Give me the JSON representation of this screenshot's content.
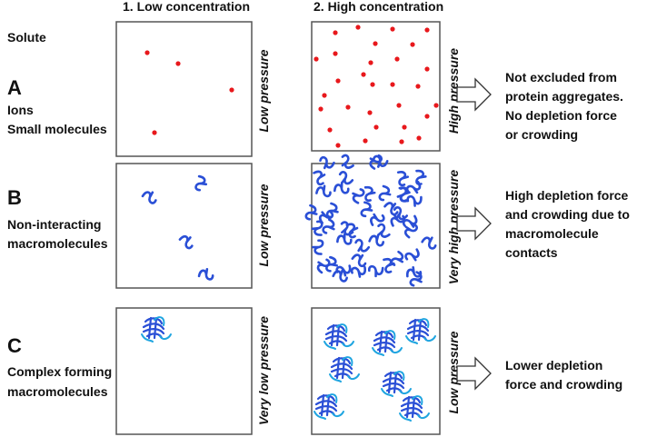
{
  "headers": {
    "col1": "1. Low concentration",
    "col2": "2. High concentration",
    "solute": "Solute"
  },
  "rows": [
    {
      "letter": "A",
      "lines": [
        "Ions",
        "Small molecules"
      ],
      "pressure_low": "Low pressure",
      "pressure_high": "High pressure",
      "outcome": [
        "Not excluded from",
        "protein aggregates.",
        "No depletion force",
        "or crowding"
      ]
    },
    {
      "letter": "B",
      "lines": [
        "Non-interacting",
        "macromolecules"
      ],
      "pressure_low": "Low pressure",
      "pressure_high": "Very high pressure",
      "outcome": [
        "High depletion force",
        "and crowding due to",
        "macromolecule",
        "contacts"
      ]
    },
    {
      "letter": "C",
      "lines": [
        "Complex forming",
        "macromolecules"
      ],
      "pressure_low": "Very low pressure",
      "pressure_high": "Low pressure",
      "outcome": [
        "Lower depletion",
        "force and crowding"
      ]
    }
  ],
  "colors": {
    "ion": "#e8181c",
    "macro": "#2a4fd6",
    "complex_light": "#1fa5e0"
  }
}
